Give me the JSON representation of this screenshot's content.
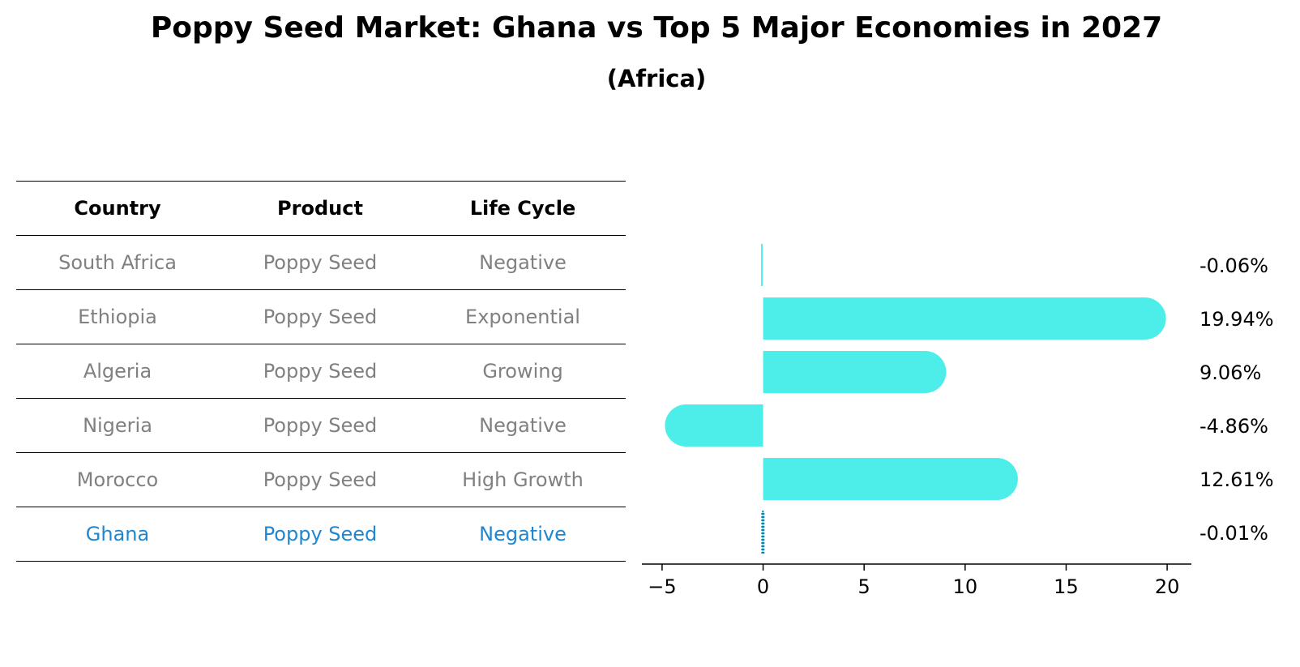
{
  "title": "Poppy Seed Market: Ghana vs Top 5 Major Economies in 2027",
  "subtitle": "(Africa)",
  "table": {
    "headers": [
      "Country",
      "Product",
      "Life Cycle"
    ],
    "rows": [
      {
        "country": "South Africa",
        "product": "Poppy Seed",
        "life_cycle": "Negative",
        "highlight": false
      },
      {
        "country": "Ethiopia",
        "product": "Poppy Seed",
        "life_cycle": "Exponential",
        "highlight": false
      },
      {
        "country": "Algeria",
        "product": "Poppy Seed",
        "life_cycle": "Growing",
        "highlight": false
      },
      {
        "country": "Nigeria",
        "product": "Poppy Seed",
        "life_cycle": "Negative",
        "highlight": false
      },
      {
        "country": "Morocco",
        "product": "Poppy Seed",
        "life_cycle": "High Growth",
        "highlight": false
      },
      {
        "country": "Ghana",
        "product": "Poppy Seed",
        "life_cycle": "Negative",
        "highlight": true
      }
    ]
  },
  "colors": {
    "bar": "#4DEEEA",
    "highlight_text": "#1F86D1",
    "normal_text": "#808080",
    "highlight_bar_edge": "#1F77B4"
  },
  "chart_data": {
    "type": "bar",
    "orientation": "horizontal",
    "categories": [
      "South Africa",
      "Ethiopia",
      "Algeria",
      "Nigeria",
      "Morocco",
      "Ghana"
    ],
    "values": [
      -0.06,
      19.94,
      9.06,
      -4.86,
      12.61,
      -0.01
    ],
    "value_labels": [
      "-0.06%",
      "19.94%",
      "9.06%",
      "-4.86%",
      "12.61%",
      "-0.01%"
    ],
    "xlim": [
      -6,
      21.2
    ],
    "xticks": [
      -5,
      0,
      5,
      10,
      15,
      20
    ],
    "xtick_labels": [
      "−5",
      "0",
      "5",
      "10",
      "15",
      "20"
    ],
    "xlabel": "",
    "ylabel": "",
    "grid": false,
    "highlight": "Ghana"
  }
}
